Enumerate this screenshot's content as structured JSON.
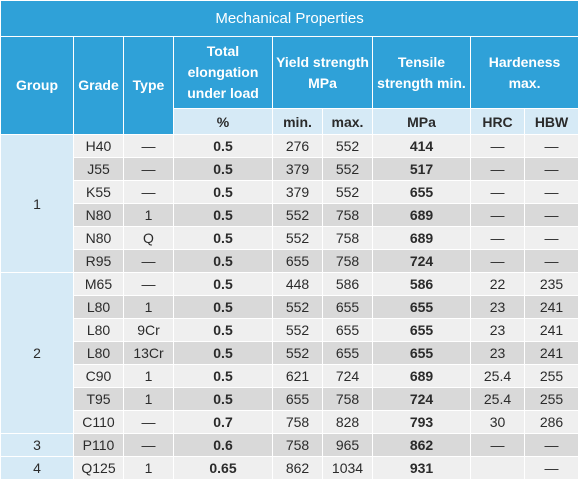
{
  "title": "Mechanical Properties",
  "headers": {
    "group": "Group",
    "grade": "Grade",
    "type": "Type",
    "elongation": "Total elongation under load",
    "yield": "Yield strength MPa",
    "tensile": "Tensile strength min.",
    "hardness": "Hardeness max."
  },
  "subheaders": {
    "elongation_unit": "%",
    "yield_min": "min.",
    "yield_max": "max.",
    "tensile_unit": "MPa",
    "hrc": "HRC",
    "hbw": "HBW"
  },
  "rows": [
    {
      "group": "1",
      "grade": "H40",
      "type": "—",
      "elong": "0.5",
      "ymin": "276",
      "ymax": "552",
      "tens": "414",
      "hrc": "—",
      "hbw": "—"
    },
    {
      "grade": "J55",
      "type": "—",
      "elong": "0.5",
      "ymin": "379",
      "ymax": "552",
      "tens": "517",
      "hrc": "—",
      "hbw": "—"
    },
    {
      "grade": "K55",
      "type": "—",
      "elong": "0.5",
      "ymin": "379",
      "ymax": "552",
      "tens": "655",
      "hrc": "—",
      "hbw": "—"
    },
    {
      "grade": "N80",
      "type": "1",
      "elong": "0.5",
      "ymin": "552",
      "ymax": "758",
      "tens": "689",
      "hrc": "—",
      "hbw": "—"
    },
    {
      "grade": "N80",
      "type": "Q",
      "elong": "0.5",
      "ymin": "552",
      "ymax": "758",
      "tens": "689",
      "hrc": "—",
      "hbw": "—"
    },
    {
      "grade": "R95",
      "type": "—",
      "elong": "0.5",
      "ymin": "655",
      "ymax": "758",
      "tens": "724",
      "hrc": "—",
      "hbw": "—"
    },
    {
      "group": "2",
      "grade": "M65",
      "type": "—",
      "elong": "0.5",
      "ymin": "448",
      "ymax": "586",
      "tens": "586",
      "hrc": "22",
      "hbw": "235"
    },
    {
      "grade": "L80",
      "type": "1",
      "elong": "0.5",
      "ymin": "552",
      "ymax": "655",
      "tens": "655",
      "hrc": "23",
      "hbw": "241"
    },
    {
      "grade": "L80",
      "type": "9Cr",
      "elong": "0.5",
      "ymin": "552",
      "ymax": "655",
      "tens": "655",
      "hrc": "23",
      "hbw": "241"
    },
    {
      "grade": "L80",
      "type": "13Cr",
      "elong": "0.5",
      "ymin": "552",
      "ymax": "655",
      "tens": "655",
      "hrc": "23",
      "hbw": "241"
    },
    {
      "grade": "C90",
      "type": "1",
      "elong": "0.5",
      "ymin": "621",
      "ymax": "724",
      "tens": "689",
      "hrc": "25.4",
      "hbw": "255"
    },
    {
      "grade": "T95",
      "type": "1",
      "elong": "0.5",
      "ymin": "655",
      "ymax": "758",
      "tens": "724",
      "hrc": "25.4",
      "hbw": "255"
    },
    {
      "grade": "C110",
      "type": "—",
      "elong": "0.7",
      "ymin": "758",
      "ymax": "828",
      "tens": "793",
      "hrc": "30",
      "hbw": "286"
    },
    {
      "group": "3",
      "grade": "P110",
      "type": "—",
      "elong": "0.6",
      "ymin": "758",
      "ymax": "965",
      "tens": "862",
      "hrc": "—",
      "hbw": "—"
    },
    {
      "group": "4",
      "grade": "Q125",
      "type": "1",
      "elong": "0.65",
      "ymin": "862",
      "ymax": "1034",
      "tens": "931",
      "hrc": "",
      "hbw": "—"
    }
  ]
}
